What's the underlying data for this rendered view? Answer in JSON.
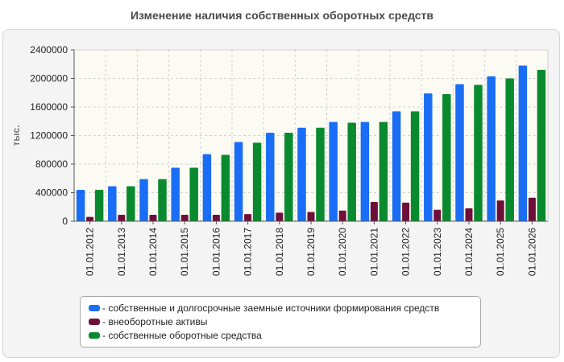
{
  "chart_data": {
    "type": "bar",
    "title": "Изменение наличия собственных оборотных средств",
    "ylabel": "тыс.",
    "ylim": [
      0,
      2400000
    ],
    "yticks": [
      "2400000",
      "2000000",
      "1600000",
      "1200000",
      "800000",
      "400000",
      "0"
    ],
    "grid": true,
    "legend_position": "bottom",
    "categories": [
      "01.01.2012",
      "01.01.2013",
      "01.01.2014",
      "01.01.2015",
      "01.01.2016",
      "01.01.2017",
      "01.01.2018",
      "01.01.2019",
      "01.01.2020",
      "01.01.2021",
      "01.01.2022",
      "01.01.2023",
      "01.01.2024",
      "01.01.2025",
      "01.01.2026"
    ],
    "series": [
      {
        "name": "собственные и долгосрочные заемные источники формирования средств",
        "color": "#1a6ef5",
        "values": [
          440000,
          490000,
          590000,
          750000,
          940000,
          1110000,
          1240000,
          1310000,
          1390000,
          1390000,
          1540000,
          1790000,
          1920000,
          2030000,
          2180000
        ]
      },
      {
        "name": "внеоборотные активы",
        "color": "#6e0f3a",
        "values": [
          60000,
          90000,
          90000,
          90000,
          90000,
          100000,
          120000,
          130000,
          150000,
          270000,
          260000,
          160000,
          180000,
          290000,
          330000
        ]
      },
      {
        "name": "собственные оборотные средства",
        "color": "#0a8a2e",
        "values": [
          440000,
          490000,
          590000,
          750000,
          930000,
          1100000,
          1240000,
          1310000,
          1380000,
          1390000,
          1540000,
          1780000,
          1910000,
          2000000,
          2120000
        ]
      }
    ]
  }
}
